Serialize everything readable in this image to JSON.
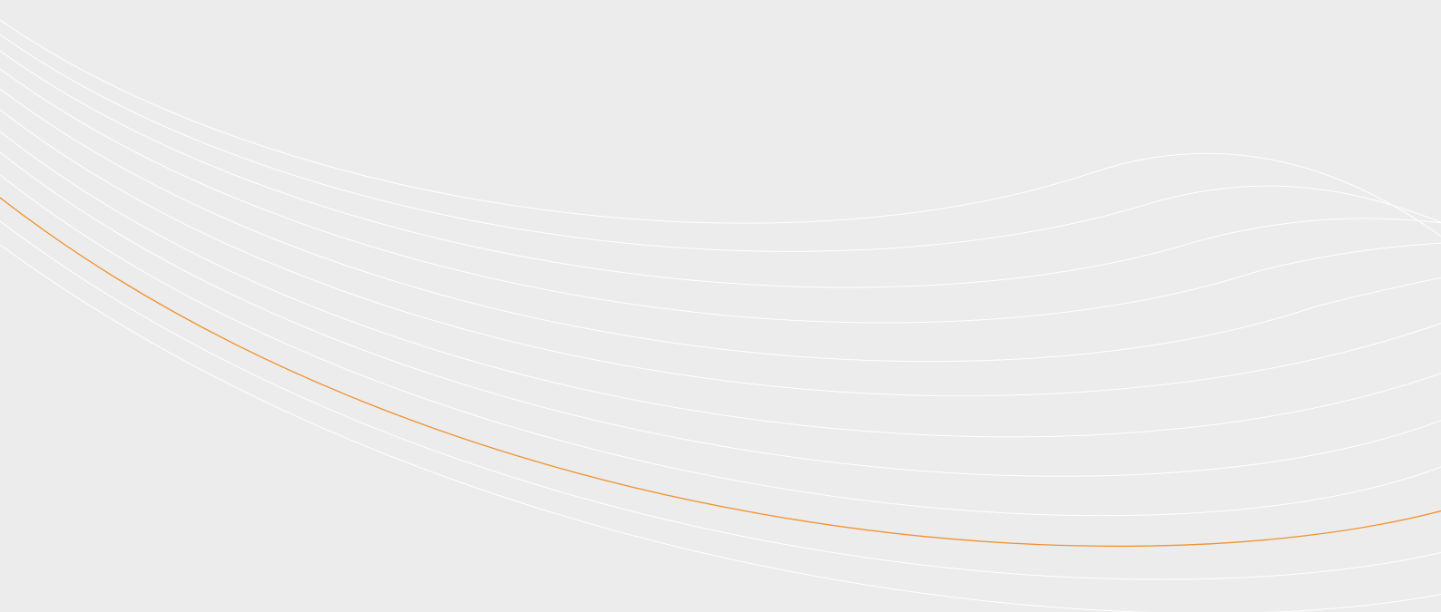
{
  "background": {
    "color": "#ececed",
    "line_color": "#ffffff",
    "accent_line_color": "#f0922e",
    "line_count": 13,
    "accent_line_index": 10
  }
}
